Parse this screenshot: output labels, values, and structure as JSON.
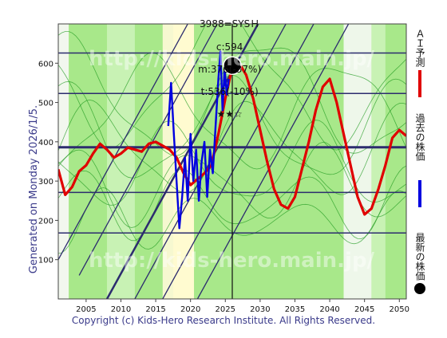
{
  "header": {
    "code": "3988=SYSＨ",
    "current": "c:594",
    "mid": "m:376(-37%)",
    "target": "t:536(-10%)",
    "stars": "★★☆"
  },
  "generated_label": "Generated on Monday 2026/1/5.",
  "copyright": "Copyright (c) Kids-Hero Research Institute. All Rights Reserved.",
  "watermark": "http://kids-hero.main.jp/",
  "legend": {
    "ai_forecast": "ＡＩ予測",
    "past_price": "過去の株価",
    "latest_price": "最新の株価"
  },
  "colors": {
    "ai_forecast": "#e00000",
    "past_price": "#0000e0",
    "latest_price": "#000000",
    "hline": "#2c2c6e",
    "background_green": "#a8e88a"
  },
  "chart_data": {
    "type": "line",
    "xlim": [
      2001,
      2051
    ],
    "ylim": [
      0,
      700
    ],
    "x_ticks": [
      2005,
      2010,
      2015,
      2020,
      2025,
      2030,
      2035,
      2040,
      2045,
      2050
    ],
    "y_ticks": [
      100,
      200,
      300,
      400,
      500,
      600
    ],
    "horizontal_levels": [
      168,
      271,
      386,
      523,
      626
    ],
    "vertical_marker_x": 2026,
    "latest_point": {
      "x": 2026,
      "y": 594
    },
    "series": [
      {
        "name": "ＡＩ予測",
        "x": [
          2001,
          2002,
          2003,
          2004,
          2005,
          2006,
          2007,
          2008,
          2009,
          2010,
          2011,
          2012,
          2013,
          2014,
          2015,
          2016,
          2017,
          2018,
          2019,
          2020,
          2021,
          2022,
          2023,
          2024,
          2025,
          2026,
          2027,
          2028,
          2029,
          2030,
          2031,
          2032,
          2033,
          2034,
          2035,
          2036,
          2037,
          2038,
          2039,
          2040,
          2041,
          2042,
          2043,
          2044,
          2045,
          2046,
          2047,
          2048,
          2049,
          2050,
          2051
        ],
        "y": [
          330,
          265,
          285,
          325,
          340,
          370,
          395,
          380,
          360,
          370,
          385,
          380,
          375,
          395,
          400,
          390,
          380,
          360,
          320,
          290,
          305,
          320,
          340,
          420,
          510,
          590,
          600,
          570,
          510,
          430,
          350,
          280,
          240,
          230,
          260,
          330,
          400,
          480,
          540,
          560,
          500,
          420,
          340,
          260,
          215,
          230,
          280,
          340,
          410,
          430,
          415
        ]
      },
      {
        "name": "過去の株価",
        "x": [
          2016.8,
          2017.2,
          2017.6,
          2018.0,
          2018.4,
          2018.8,
          2019.2,
          2019.6,
          2020.0,
          2020.4,
          2020.8,
          2021.2,
          2021.6,
          2022.0,
          2022.4,
          2022.8,
          2023.2,
          2023.6,
          2024.0,
          2024.3,
          2024.6,
          2024.9,
          2025.2,
          2025.5
        ],
        "y": [
          440,
          550,
          420,
          300,
          180,
          260,
          360,
          250,
          420,
          300,
          380,
          250,
          350,
          400,
          260,
          380,
          320,
          440,
          560,
          630,
          480,
          590,
          520,
          560
        ]
      }
    ]
  }
}
